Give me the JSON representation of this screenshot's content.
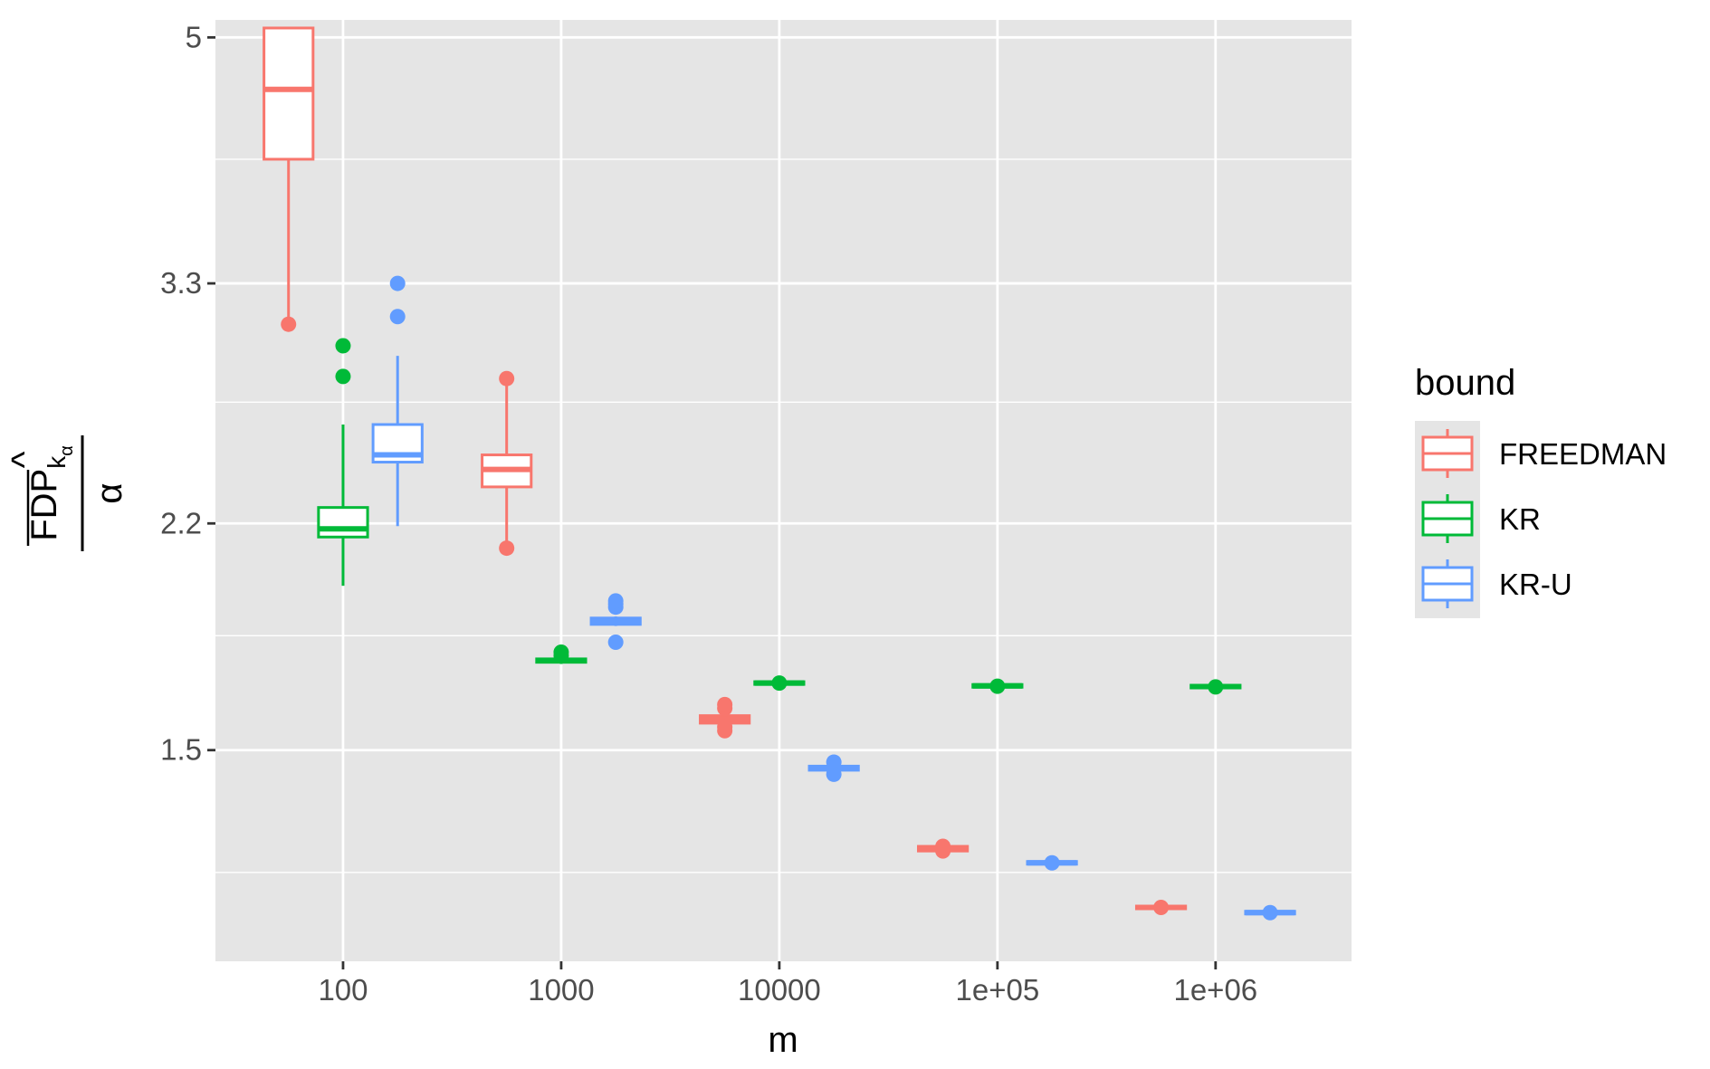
{
  "chart_data": {
    "type": "box",
    "xlabel": "m",
    "ylabel": {
      "numerator_main": "FDP",
      "numerator_sub": "k",
      "numerator_hat": "^",
      "numerator_subsub": "α",
      "denominator": "α"
    },
    "x_scale": "log10",
    "y_scale": "log",
    "x_range": [
      26,
      4200000
    ],
    "y_range": [
      1.05,
      5.15
    ],
    "categories": [
      "100",
      "1000",
      "10000",
      "1e+05",
      "1e+06"
    ],
    "x_values": [
      100,
      1000,
      10000,
      100000,
      1000000
    ],
    "y_ticks": [
      {
        "value": 1.5,
        "label": "1.5"
      },
      {
        "value": 2.2,
        "label": "2.2"
      },
      {
        "value": 3.3,
        "label": "3.3"
      },
      {
        "value": 5,
        "label": "5"
      }
    ],
    "y_minor_ticks": [
      1.22,
      1.82,
      2.7,
      4.07
    ],
    "grid": true,
    "background": "#e5e5e5",
    "legend": {
      "title": "bound",
      "placement": "right"
    },
    "series": [
      {
        "name": "FREEDMAN",
        "color": "#F8766D",
        "boxes": [
          {
            "x": 100,
            "whisker_low": 3.08,
            "q1": 4.07,
            "median": 4.58,
            "q3": 5.08,
            "whisker_high": 5.08,
            "outliers": [
              3.08
            ]
          },
          {
            "x": 1000,
            "whisker_low": 2.11,
            "q1": 2.34,
            "median": 2.41,
            "q3": 2.47,
            "whisker_high": 2.81,
            "outliers": [
              2.11,
              2.81
            ]
          },
          {
            "x": 10000,
            "whisker_low": 1.56,
            "q1": 1.57,
            "median": 1.58,
            "q3": 1.59,
            "whisker_high": 1.6,
            "outliers": [
              1.55,
              1.56,
              1.61,
              1.62
            ]
          },
          {
            "x": 100000,
            "whisker_low": 1.26,
            "q1": 1.265,
            "median": 1.27,
            "q3": 1.275,
            "whisker_high": 1.28,
            "outliers": [
              1.265,
              1.275
            ]
          },
          {
            "x": 1000000,
            "whisker_low": 1.145,
            "q1": 1.148,
            "median": 1.15,
            "q3": 1.152,
            "whisker_high": 1.155,
            "outliers": [
              1.15
            ]
          }
        ]
      },
      {
        "name": "KR",
        "color": "#00BA38",
        "boxes": [
          {
            "x": 100,
            "whisker_low": 1.98,
            "q1": 2.15,
            "median": 2.18,
            "q3": 2.26,
            "whisker_high": 2.6,
            "outliers": [
              2.82,
              2.97
            ]
          },
          {
            "x": 1000,
            "whisker_low": 1.735,
            "q1": 1.74,
            "median": 1.745,
            "q3": 1.75,
            "whisker_high": 1.755,
            "outliers": [
              1.76,
              1.77
            ]
          },
          {
            "x": 10000,
            "whisker_low": 1.675,
            "q1": 1.678,
            "median": 1.68,
            "q3": 1.682,
            "whisker_high": 1.685,
            "outliers": [
              1.68
            ]
          },
          {
            "x": 100000,
            "whisker_low": 1.668,
            "q1": 1.67,
            "median": 1.672,
            "q3": 1.674,
            "whisker_high": 1.676,
            "outliers": [
              1.671
            ]
          },
          {
            "x": 1000000,
            "whisker_low": 1.666,
            "q1": 1.668,
            "median": 1.67,
            "q3": 1.672,
            "whisker_high": 1.674,
            "outliers": [
              1.669
            ]
          }
        ]
      },
      {
        "name": "KR-U",
        "color": "#619CFF",
        "boxes": [
          {
            "x": 100,
            "whisker_low": 2.19,
            "q1": 2.44,
            "median": 2.47,
            "q3": 2.6,
            "whisker_high": 2.92,
            "outliers": [
              3.12,
              3.3
            ]
          },
          {
            "x": 1000,
            "whisker_low": 1.85,
            "q1": 1.855,
            "median": 1.865,
            "q3": 1.875,
            "whisker_high": 1.88,
            "outliers": [
              1.8,
              1.91,
              1.92,
              1.93
            ]
          },
          {
            "x": 10000,
            "whisker_low": 1.445,
            "q1": 1.45,
            "median": 1.455,
            "q3": 1.46,
            "whisker_high": 1.465,
            "outliers": [
              1.44,
              1.47
            ]
          },
          {
            "x": 100000,
            "whisker_low": 1.235,
            "q1": 1.238,
            "median": 1.24,
            "q3": 1.242,
            "whisker_high": 1.245,
            "outliers": [
              1.24
            ]
          },
          {
            "x": 1000000,
            "whisker_low": 1.137,
            "q1": 1.139,
            "median": 1.14,
            "q3": 1.141,
            "whisker_high": 1.143,
            "outliers": [
              1.14
            ]
          }
        ]
      }
    ]
  }
}
